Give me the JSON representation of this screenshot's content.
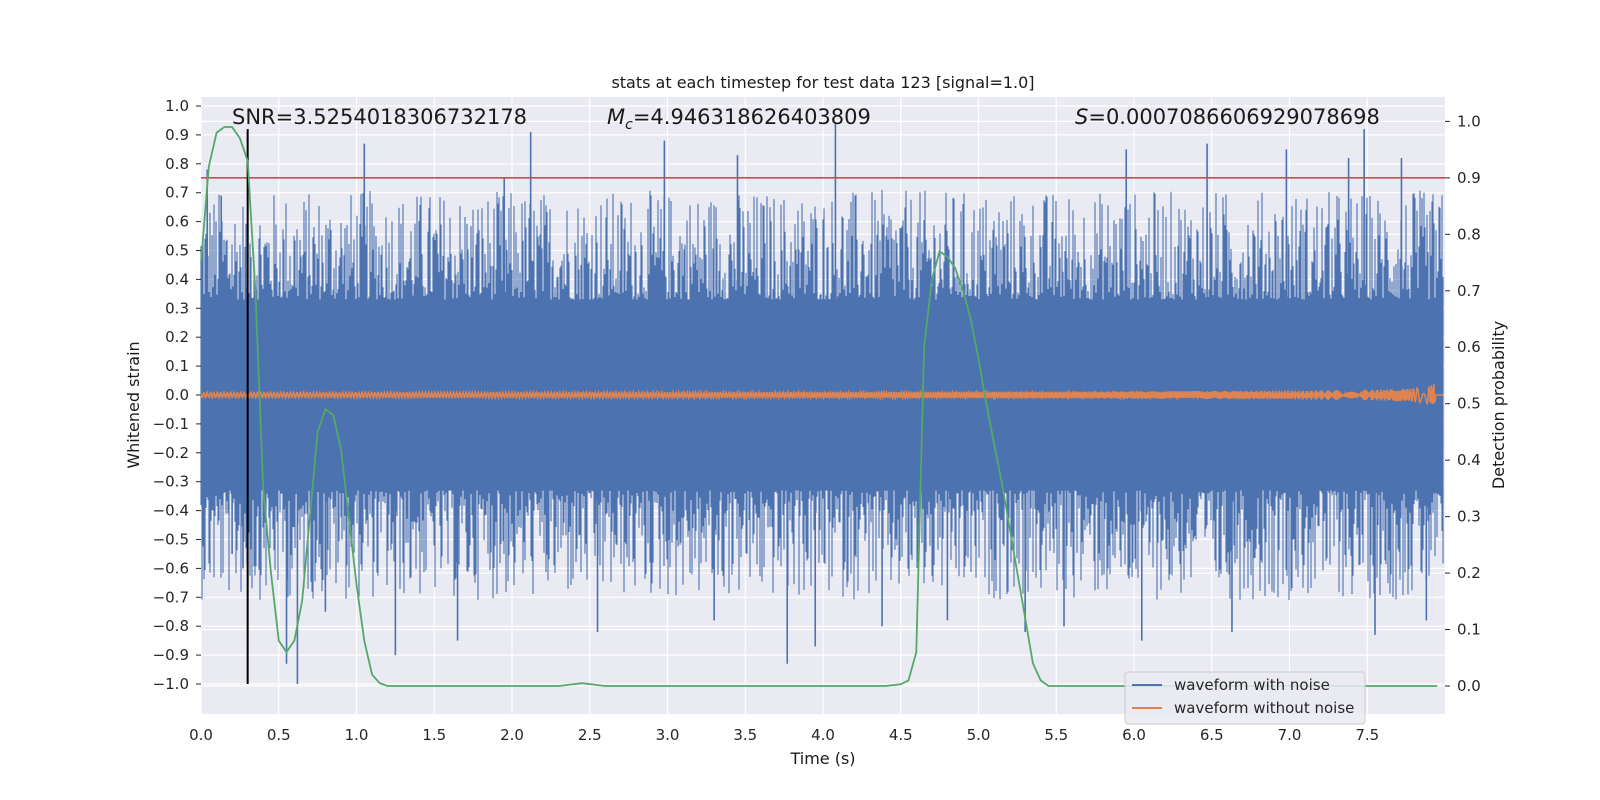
{
  "chart_data": {
    "type": "line",
    "title": "stats at each timestep for test data 123 [signal=1.0]",
    "xlabel": "Time (s)",
    "ylabel": "Whitened strain",
    "y2label": "Detection probability",
    "xlim": [
      0.0,
      8.0
    ],
    "ylim": [
      -1.1,
      1.05
    ],
    "y2lim": [
      -0.05,
      1.05
    ],
    "xticks": [
      0.0,
      0.5,
      1.0,
      1.5,
      2.0,
      2.5,
      3.0,
      3.5,
      4.0,
      4.5,
      5.0,
      5.5,
      6.0,
      6.5,
      7.0,
      7.5
    ],
    "xtick_labels": [
      "0.0",
      "0.5",
      "1.0",
      "1.5",
      "2.0",
      "2.5",
      "3.0",
      "3.5",
      "4.0",
      "4.5",
      "5.0",
      "5.5",
      "6.0",
      "6.5",
      "7.0",
      "7.5"
    ],
    "yticks": [
      1.0,
      0.9,
      0.8,
      0.7,
      0.6,
      0.5,
      0.4,
      0.3,
      0.2,
      0.1,
      0.0,
      -0.1,
      -0.2,
      -0.3,
      -0.4,
      -0.5,
      -0.6,
      -0.7,
      -0.8,
      -0.9,
      -1.0
    ],
    "ytick_labels": [
      "1.0",
      "0.9",
      "0.8",
      "0.7",
      "0.6",
      "0.5",
      "0.4",
      "0.3",
      "0.2",
      "0.1",
      "0.0",
      "−0.1",
      "−0.2",
      "−0.3",
      "−0.4",
      "−0.5",
      "−0.6",
      "−0.7",
      "−0.8",
      "−0.9",
      "−1.0"
    ],
    "y2ticks": [
      1.0,
      0.9,
      0.8,
      0.7,
      0.6,
      0.5,
      0.4,
      0.3,
      0.2,
      0.1,
      0.0
    ],
    "y2tick_labels": [
      "1.0",
      "0.9",
      "0.8",
      "0.7",
      "0.6",
      "0.5",
      "0.4",
      "0.3",
      "0.2",
      "0.1",
      "0.0"
    ],
    "annotations": {
      "snr": "SNR=3.5254018306732178",
      "mc_symbol": "M",
      "mc_sub": "c",
      "mc_value": "=4.946318626403809",
      "s_symbol": "S",
      "s_value": "=0.0007086606929078698"
    },
    "threshold": {
      "value": 0.9,
      "axis": "y2",
      "color": "#c44e52"
    },
    "marker_time": 0.3,
    "noise_band": {
      "core_low": -0.33,
      "core_high": 0.33,
      "peak_up": 0.94,
      "peak_down": -1.0
    },
    "series": [
      {
        "name": "waveform with noise",
        "color": "#4c72b0",
        "axis": "y1",
        "spikes": [
          {
            "t": 0.04,
            "v": 0.78
          },
          {
            "t": 0.13,
            "v": 0.69
          },
          {
            "t": 0.2,
            "v": -0.55
          },
          {
            "t": 0.27,
            "v": -0.6
          },
          {
            "t": 0.55,
            "v": -0.93
          },
          {
            "t": 0.62,
            "v": -1.0
          },
          {
            "t": 0.8,
            "v": -0.75
          },
          {
            "t": 1.05,
            "v": 0.87
          },
          {
            "t": 1.25,
            "v": -0.9
          },
          {
            "t": 1.65,
            "v": -0.85
          },
          {
            "t": 1.95,
            "v": 0.75
          },
          {
            "t": 2.12,
            "v": 0.91
          },
          {
            "t": 2.55,
            "v": -0.82
          },
          {
            "t": 2.98,
            "v": 0.88
          },
          {
            "t": 3.3,
            "v": -0.78
          },
          {
            "t": 3.45,
            "v": 0.83
          },
          {
            "t": 3.77,
            "v": -0.93
          },
          {
            "t": 3.95,
            "v": -0.87
          },
          {
            "t": 4.08,
            "v": 0.94
          },
          {
            "t": 4.38,
            "v": -0.8
          },
          {
            "t": 4.8,
            "v": -0.78
          },
          {
            "t": 5.3,
            "v": -0.82
          },
          {
            "t": 5.55,
            "v": -0.8
          },
          {
            "t": 5.95,
            "v": 0.85
          },
          {
            "t": 6.05,
            "v": -0.85
          },
          {
            "t": 6.47,
            "v": 0.87
          },
          {
            "t": 6.63,
            "v": -0.82
          },
          {
            "t": 6.98,
            "v": 0.85
          },
          {
            "t": 7.38,
            "v": 0.82
          },
          {
            "t": 7.48,
            "v": 0.92
          },
          {
            "t": 7.55,
            "v": -0.83
          },
          {
            "t": 7.72,
            "v": 0.82
          },
          {
            "t": 7.88,
            "v": -0.78
          }
        ]
      },
      {
        "name": "waveform without noise",
        "color": "#dd8452",
        "axis": "y1",
        "t_coalescence": 7.95,
        "amplitude_start": 0.01,
        "amplitude_end": 0.1
      },
      {
        "name": "detection probability",
        "color": "#55a868",
        "axis": "y2",
        "x": [
          0.0,
          0.05,
          0.1,
          0.15,
          0.2,
          0.25,
          0.3,
          0.35,
          0.4,
          0.45,
          0.5,
          0.55,
          0.6,
          0.65,
          0.7,
          0.75,
          0.8,
          0.85,
          0.9,
          0.95,
          1.0,
          1.05,
          1.1,
          1.15,
          1.2,
          1.25,
          1.3,
          1.5,
          2.0,
          2.3,
          2.45,
          2.6,
          3.0,
          3.5,
          4.0,
          4.4,
          4.5,
          4.55,
          4.6,
          4.65,
          4.7,
          4.75,
          4.8,
          4.85,
          4.9,
          4.95,
          5.0,
          5.05,
          5.1,
          5.15,
          5.2,
          5.25,
          5.3,
          5.35,
          5.4,
          5.45,
          5.5,
          6.0,
          7.0,
          7.95
        ],
        "values": [
          0.75,
          0.92,
          0.98,
          0.99,
          0.99,
          0.97,
          0.93,
          0.7,
          0.35,
          0.2,
          0.08,
          0.06,
          0.08,
          0.15,
          0.3,
          0.45,
          0.49,
          0.48,
          0.42,
          0.3,
          0.18,
          0.08,
          0.02,
          0.005,
          0.0,
          0.0,
          0.0,
          0.0,
          0.0,
          0.0,
          0.005,
          0.0,
          0.0,
          0.0,
          0.0,
          0.0,
          0.003,
          0.01,
          0.06,
          0.6,
          0.72,
          0.77,
          0.76,
          0.74,
          0.7,
          0.65,
          0.58,
          0.5,
          0.43,
          0.36,
          0.28,
          0.2,
          0.12,
          0.04,
          0.01,
          0.0,
          0.0,
          0.0,
          0.0,
          0.0
        ]
      }
    ],
    "legend": {
      "placement": "lower-right",
      "entries": [
        {
          "label": "waveform with noise",
          "color": "#4c72b0"
        },
        {
          "label": "waveform without noise",
          "color": "#dd8452"
        }
      ]
    }
  }
}
